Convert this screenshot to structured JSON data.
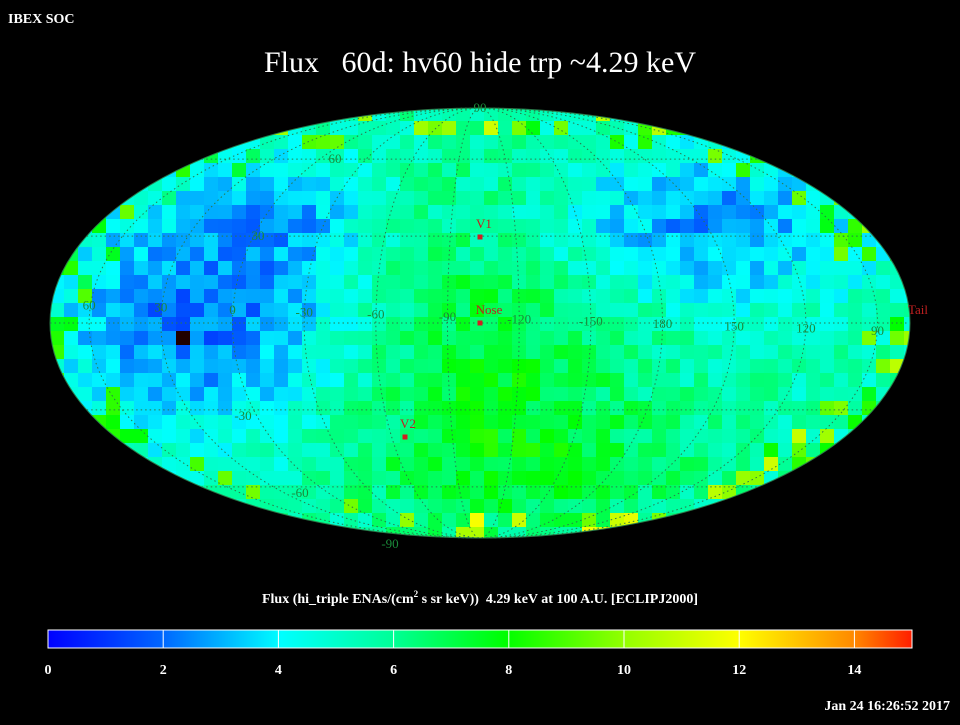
{
  "header": {
    "org": "IBEX SOC",
    "title": "Flux   60d: hv60 hide trp ~4.29 keV"
  },
  "map": {
    "longitude_labels": [
      60,
      30,
      0,
      -30,
      -60,
      -90,
      -120,
      -150,
      180,
      150,
      120,
      90
    ],
    "latitude_labels": [
      90,
      60,
      30,
      -30,
      -60,
      -90
    ],
    "markers": [
      "V1",
      "Nose",
      "V2",
      "Tail"
    ]
  },
  "colorbar": {
    "label_parts": [
      "Flux (hi_triple ENAs/(cm",
      "2",
      " s sr keV))  4.29 keV at 100 A.U. [ECLIPJ2000]"
    ],
    "range": [
      0,
      15
    ],
    "ticks": [
      0,
      2,
      4,
      6,
      8,
      10,
      12,
      14
    ]
  },
  "timestamp": "Jan 24 16:26:52 2017"
}
